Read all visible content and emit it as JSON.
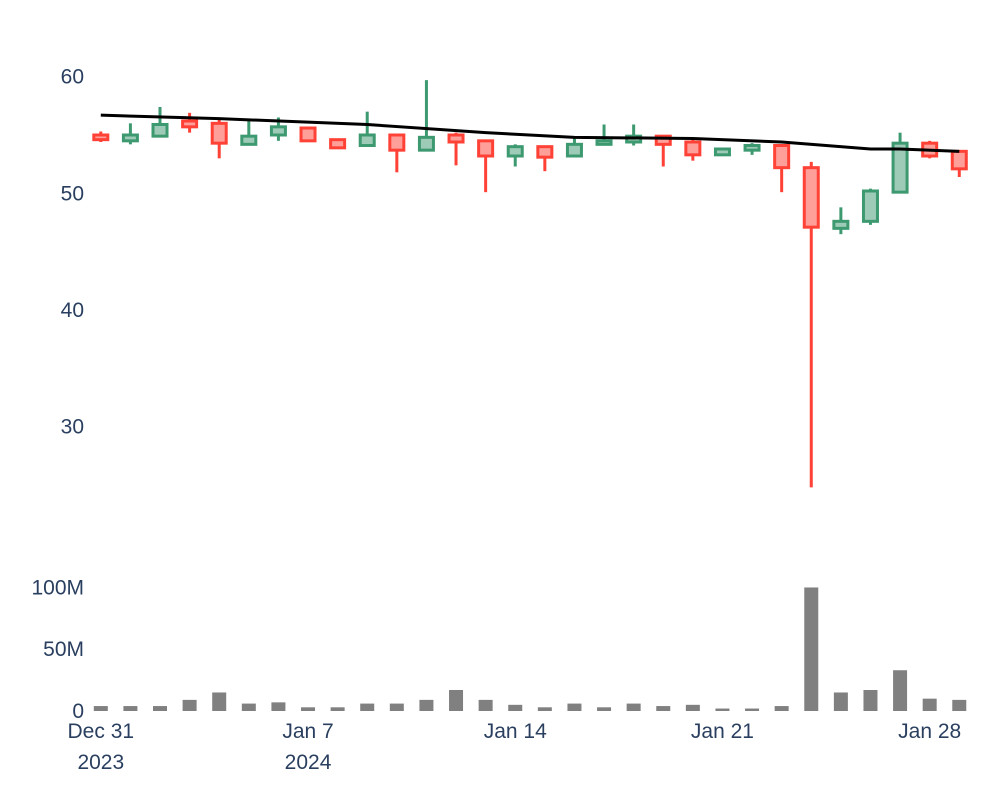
{
  "chart_data": {
    "type": "candlestick",
    "colors": {
      "increasing": "#3d9970",
      "increasing_fill": "#9ecbb7",
      "decreasing": "#ff4136",
      "decreasing_fill": "#ff9f9a",
      "ma_line": "#000000",
      "volume": "#808080",
      "axis_text": "#2a3f5f"
    },
    "price_axis": {
      "range": [
        22,
        64
      ],
      "ticks": [
        30,
        40,
        50,
        60
      ],
      "tick_labels": [
        "30",
        "40",
        "50",
        "60"
      ]
    },
    "volume_axis": {
      "range": [
        0,
        102
      ],
      "ticks": [
        0,
        50,
        100
      ],
      "tick_labels": [
        "0",
        "50M",
        "100M"
      ],
      "unit": "M"
    },
    "x_axis": {
      "range": [
        -0.5,
        29.7
      ],
      "ticks": [
        {
          "x": 0,
          "line1": "Dec 31",
          "line2": "2023"
        },
        {
          "x": 7,
          "line1": "Jan 7",
          "line2": "2024"
        },
        {
          "x": 14,
          "line1": "Jan 14",
          "line2": ""
        },
        {
          "x": 21,
          "line1": "Jan 21",
          "line2": ""
        },
        {
          "x": 28,
          "line1": "Jan 28",
          "line2": ""
        }
      ]
    },
    "candles": [
      {
        "date": "2023-12-31",
        "open": 55.0,
        "high": 55.3,
        "low": 54.4,
        "close": 54.6,
        "volume": 4
      },
      {
        "date": "2024-01-01",
        "open": 54.5,
        "high": 56.0,
        "low": 54.2,
        "close": 55.0,
        "volume": 4
      },
      {
        "date": "2024-01-02",
        "open": 54.9,
        "high": 57.4,
        "low": 54.9,
        "close": 55.9,
        "volume": 4
      },
      {
        "date": "2024-01-03",
        "open": 56.2,
        "high": 56.9,
        "low": 55.2,
        "close": 55.7,
        "volume": 9
      },
      {
        "date": "2024-01-04",
        "open": 56.0,
        "high": 56.5,
        "low": 53.0,
        "close": 54.3,
        "volume": 15
      },
      {
        "date": "2024-01-05",
        "open": 54.2,
        "high": 56.2,
        "low": 54.2,
        "close": 54.9,
        "volume": 6
      },
      {
        "date": "2024-01-06",
        "open": 55.0,
        "high": 56.5,
        "low": 54.5,
        "close": 55.7,
        "volume": 7
      },
      {
        "date": "2024-01-07",
        "open": 55.6,
        "high": 55.6,
        "low": 54.4,
        "close": 54.5,
        "volume": 3
      },
      {
        "date": "2024-01-08",
        "open": 54.6,
        "high": 54.7,
        "low": 53.8,
        "close": 53.9,
        "volume": 3
      },
      {
        "date": "2024-01-09",
        "open": 54.1,
        "high": 57.0,
        "low": 54.1,
        "close": 55.0,
        "volume": 6
      },
      {
        "date": "2024-01-10",
        "open": 55.0,
        "high": 55.0,
        "low": 51.8,
        "close": 53.7,
        "volume": 6
      },
      {
        "date": "2024-01-11",
        "open": 53.7,
        "high": 59.7,
        "low": 53.7,
        "close": 54.8,
        "volume": 9
      },
      {
        "date": "2024-01-12",
        "open": 55.0,
        "high": 55.2,
        "low": 52.4,
        "close": 54.4,
        "volume": 17
      },
      {
        "date": "2024-01-13",
        "open": 54.5,
        "high": 54.6,
        "low": 50.1,
        "close": 53.2,
        "volume": 9
      },
      {
        "date": "2024-01-14",
        "open": 53.2,
        "high": 54.2,
        "low": 52.3,
        "close": 54.0,
        "volume": 5
      },
      {
        "date": "2024-01-15",
        "open": 54.0,
        "high": 54.0,
        "low": 51.9,
        "close": 53.1,
        "volume": 3
      },
      {
        "date": "2024-01-16",
        "open": 53.2,
        "high": 54.9,
        "low": 53.2,
        "close": 54.2,
        "volume": 6
      },
      {
        "date": "2024-01-17",
        "open": 54.2,
        "high": 55.9,
        "low": 54.2,
        "close": 54.5,
        "volume": 3
      },
      {
        "date": "2024-01-18",
        "open": 54.4,
        "high": 55.9,
        "low": 54.1,
        "close": 54.9,
        "volume": 6
      },
      {
        "date": "2024-01-19",
        "open": 54.9,
        "high": 54.9,
        "low": 52.3,
        "close": 54.2,
        "volume": 4
      },
      {
        "date": "2024-01-20",
        "open": 54.4,
        "high": 54.7,
        "low": 52.8,
        "close": 53.3,
        "volume": 5
      },
      {
        "date": "2024-01-21",
        "open": 53.3,
        "high": 53.9,
        "low": 53.2,
        "close": 53.8,
        "volume": 2
      },
      {
        "date": "2024-01-22",
        "open": 53.7,
        "high": 54.3,
        "low": 53.3,
        "close": 54.1,
        "volume": 2
      },
      {
        "date": "2024-01-23",
        "open": 54.1,
        "high": 54.2,
        "low": 50.1,
        "close": 52.2,
        "volume": 4
      },
      {
        "date": "2024-01-24",
        "open": 52.2,
        "high": 52.7,
        "low": 24.8,
        "close": 47.1,
        "volume": 100
      },
      {
        "date": "2024-01-25",
        "open": 47.0,
        "high": 48.8,
        "low": 46.5,
        "close": 47.6,
        "volume": 15
      },
      {
        "date": "2024-01-26",
        "open": 47.6,
        "high": 50.4,
        "low": 47.3,
        "close": 50.2,
        "volume": 17
      },
      {
        "date": "2024-01-27",
        "open": 50.1,
        "high": 55.2,
        "low": 50.1,
        "close": 54.3,
        "volume": 33
      },
      {
        "date": "2024-01-28",
        "open": 54.3,
        "high": 54.5,
        "low": 53.0,
        "close": 53.2,
        "volume": 10
      },
      {
        "date": "2024-01-29",
        "open": 53.6,
        "high": 53.7,
        "low": 51.4,
        "close": 52.1,
        "volume": 9
      }
    ],
    "moving_average": [
      {
        "x": 0,
        "y": 56.7
      },
      {
        "x": 4,
        "y": 56.4
      },
      {
        "x": 7,
        "y": 56.1
      },
      {
        "x": 9,
        "y": 55.9
      },
      {
        "x": 13,
        "y": 55.2
      },
      {
        "x": 16,
        "y": 54.8
      },
      {
        "x": 20,
        "y": 54.7
      },
      {
        "x": 23,
        "y": 54.4
      },
      {
        "x": 26,
        "y": 53.8
      },
      {
        "x": 27,
        "y": 53.8
      },
      {
        "x": 29,
        "y": 53.6
      }
    ]
  }
}
